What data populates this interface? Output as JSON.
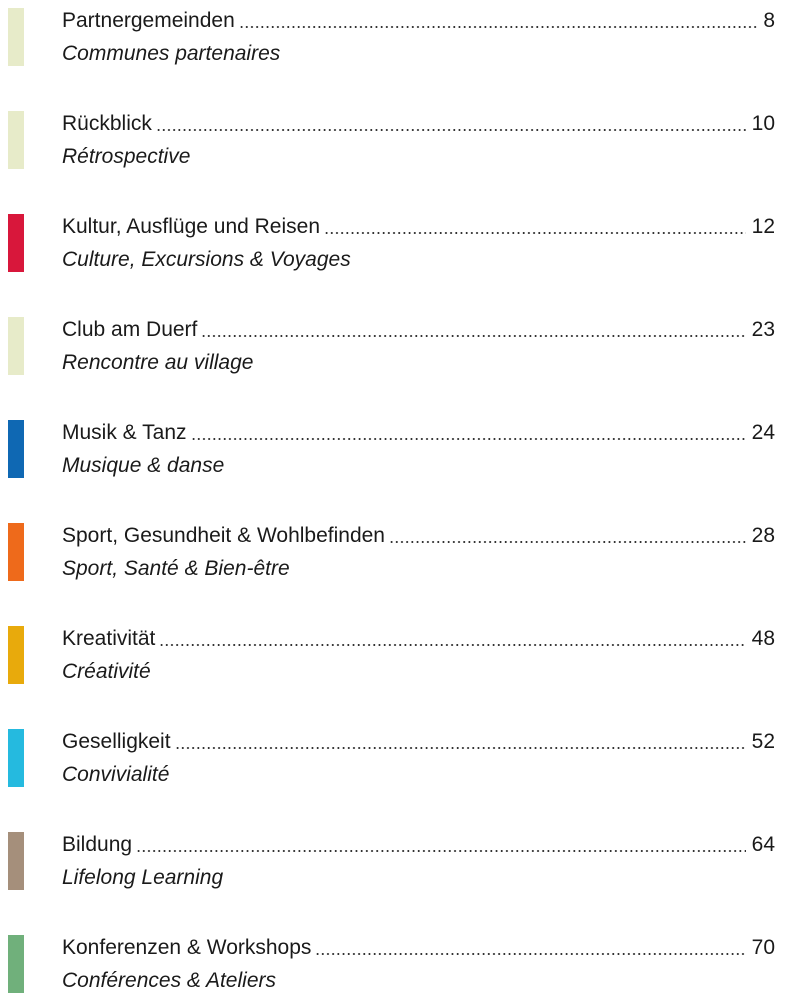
{
  "toc": {
    "entries": [
      {
        "title": "Partnergemeinden",
        "subtitle": "Communes partenaires",
        "page": 8,
        "color": "#e7ebc9"
      },
      {
        "title": "Rückblick",
        "subtitle": "Rétrospective",
        "page": 10,
        "color": "#e7ebc9"
      },
      {
        "title": "Kultur, Ausflüge und Reisen",
        "subtitle": "Culture, Excursions & Voyages",
        "page": 12,
        "color": "#d8173b"
      },
      {
        "title": "Club am Duerf",
        "subtitle": "Rencontre au village",
        "page": 23,
        "color": "#e7ebc9"
      },
      {
        "title": "Musik & Tanz",
        "subtitle": "Musique & danse",
        "page": 24,
        "color": "#0f68b3"
      },
      {
        "title": "Sport, Gesundheit & Wohlbefinden",
        "subtitle": "Sport, Santé & Bien-être",
        "page": 28,
        "color": "#ee6a1b"
      },
      {
        "title": "Kreativität",
        "subtitle": "Créativité",
        "page": 48,
        "color": "#e8aa0c"
      },
      {
        "title": "Geselligkeit",
        "subtitle": "Convivialité",
        "page": 52,
        "color": "#25badf"
      },
      {
        "title": "Bildung",
        "subtitle": "Lifelong Learning",
        "page": 64,
        "color": "#a58f7b"
      },
      {
        "title": "Konferenzen & Workshops",
        "subtitle": "Conférences & Ateliers",
        "page": 70,
        "color": "#70b07b"
      }
    ]
  }
}
